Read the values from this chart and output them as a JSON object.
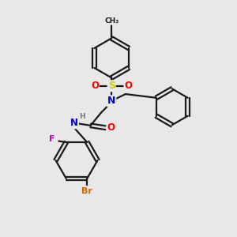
{
  "bg_color": "#e8e8e8",
  "bond_color": "#1a1a1a",
  "atom_colors": {
    "N": "#0000cc",
    "O": "#ff0000",
    "S": "#cccc00",
    "F": "#cc00cc",
    "Br": "#cc6600",
    "H": "#777777",
    "C": "#1a1a1a"
  }
}
